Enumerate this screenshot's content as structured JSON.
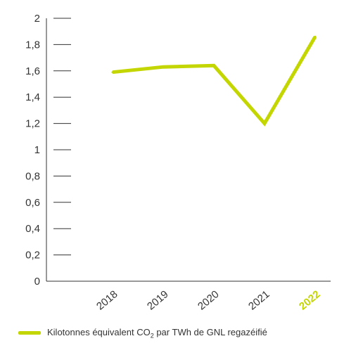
{
  "chart_data": {
    "type": "line",
    "categories": [
      "2018",
      "2019",
      "2020",
      "2021",
      "2022"
    ],
    "highlight_category": "2022",
    "series": [
      {
        "name": "Kilotonnes équivalent CO2 par TWh de GNL regazéifié",
        "values": [
          1.59,
          1.63,
          1.64,
          1.2,
          1.86
        ]
      }
    ],
    "y_ticks": [
      "0",
      "0,2",
      "0,4",
      "0,6",
      "0,8",
      "1",
      "1,2",
      "1,4",
      "1,6",
      "1,8",
      "2"
    ],
    "ylim": [
      0,
      2
    ],
    "grid": false,
    "legend_position": "bottom-left",
    "colors": {
      "series": "#c4d600",
      "highlight": "#c4d600",
      "axis": "#333333",
      "text": "#333333"
    }
  },
  "legend": {
    "label_before": "Kilotonnes équivalent CO",
    "label_sub": "2",
    "label_after": " par TWh de GNL regazéifié"
  }
}
